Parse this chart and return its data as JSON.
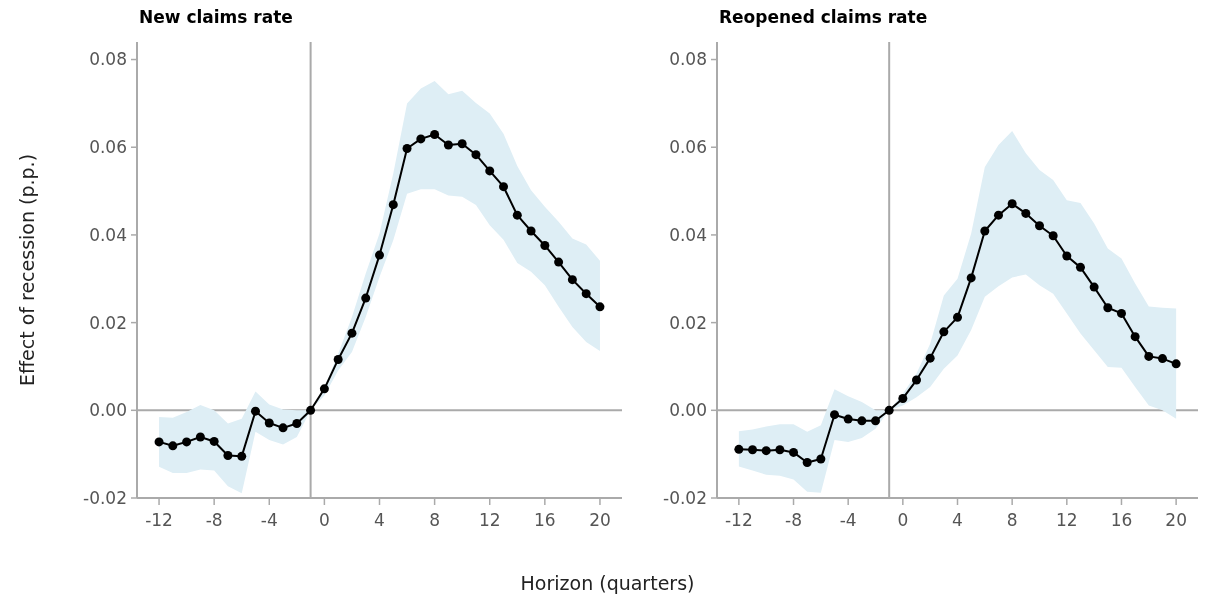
{
  "chart_data": [
    {
      "type": "line",
      "title": "New claims rate",
      "ylabel": "Effect of recession (p.p.)",
      "xlabel": "Horizon (quarters)",
      "x": [
        -12,
        -11,
        -10,
        -9,
        -8,
        -7,
        -6,
        -5,
        -4,
        -3,
        -2,
        -1,
        0,
        1,
        2,
        3,
        4,
        5,
        6,
        7,
        8,
        9,
        10,
        11,
        12,
        13,
        14,
        15,
        16,
        17,
        18,
        19,
        20
      ],
      "series": [
        {
          "color": "#000000",
          "values": [
            -0.0072,
            -0.0081,
            -0.0072,
            -0.0061,
            -0.0071,
            -0.0103,
            -0.0105,
            -0.0002,
            -0.0029,
            -0.004,
            -0.003,
            0,
            0.0049,
            0.0116,
            0.0176,
            0.0256,
            0.0354,
            0.0469,
            0.0597,
            0.0619,
            0.0629,
            0.0605,
            0.0608,
            0.0583,
            0.0546,
            0.051,
            0.0445,
            0.0409,
            0.0376,
            0.0338,
            0.0298,
            0.0266,
            0.0236
          ],
          "lower": [
            -0.0129,
            -0.0143,
            -0.0143,
            -0.0135,
            -0.0137,
            -0.0173,
            -0.0189,
            -0.0049,
            -0.0068,
            -0.0078,
            -0.0061,
            0,
            0.0034,
            0.0091,
            0.0133,
            0.0213,
            0.0304,
            0.0388,
            0.0494,
            0.0504,
            0.0504,
            0.049,
            0.0487,
            0.0468,
            0.0422,
            0.0389,
            0.0336,
            0.0316,
            0.0285,
            0.0236,
            0.019,
            0.0156,
            0.0135
          ],
          "upper": [
            -0.0015,
            -0.0017,
            -0.0004,
            0.0012,
            0,
            -0.003,
            -0.0019,
            0.0043,
            0.0013,
            0.0002,
            0,
            0,
            0.0053,
            0.0129,
            0.0213,
            0.0312,
            0.0403,
            0.054,
            0.07,
            0.0734,
            0.0751,
            0.0721,
            0.0729,
            0.0701,
            0.0677,
            0.0631,
            0.0557,
            0.0502,
            0.0464,
            0.043,
            0.0392,
            0.0378,
            0.0341
          ]
        }
      ],
      "marker": "circle",
      "line_style": "solid",
      "grid": false,
      "xlim": [
        -13.6,
        21.6
      ],
      "xticks": [
        -12,
        -8,
        -4,
        0,
        4,
        8,
        12,
        16,
        20
      ],
      "ylim": [
        -0.02,
        0.084
      ],
      "yticks": [
        {
          "value": -0.02,
          "label": "-0.02"
        },
        {
          "value": 0,
          "label": "0.00"
        },
        {
          "value": 0.02,
          "label": "0.02"
        },
        {
          "value": 0.04,
          "label": "0.04"
        },
        {
          "value": 0.06,
          "label": "0.06"
        },
        {
          "value": 0.08,
          "label": "0.08"
        }
      ],
      "ref_lines": [
        {
          "axis": "x",
          "value": -1,
          "color": "#aaaaaa"
        },
        {
          "axis": "y",
          "value": 0,
          "color": "#aaaaaa"
        }
      ]
    },
    {
      "type": "line",
      "title": "Reopened claims rate",
      "x": [
        -12,
        -11,
        -10,
        -9,
        -8,
        -7,
        -6,
        -5,
        -4,
        -3,
        -2,
        -1,
        0,
        1,
        2,
        3,
        4,
        5,
        6,
        7,
        8,
        9,
        10,
        11,
        12,
        13,
        14,
        15,
        16,
        17,
        18,
        19,
        20
      ],
      "series": [
        {
          "color": "#000000",
          "values": [
            -0.0089,
            -0.009,
            -0.0092,
            -0.009,
            -0.0096,
            -0.0119,
            -0.0111,
            -0.001,
            -0.002,
            -0.0024,
            -0.0024,
            0,
            0.0027,
            0.0069,
            0.0119,
            0.0179,
            0.0212,
            0.0302,
            0.0409,
            0.0445,
            0.0471,
            0.0449,
            0.0421,
            0.0398,
            0.0352,
            0.0326,
            0.0281,
            0.0234,
            0.0221,
            0.0168,
            0.0123,
            0.0118,
            0.0106
          ],
          "lower": [
            -0.0128,
            -0.0137,
            -0.0147,
            -0.0149,
            -0.0158,
            -0.0186,
            -0.0188,
            -0.0068,
            -0.0072,
            -0.0063,
            -0.0042,
            0,
            0.0011,
            0.003,
            0.0053,
            0.0095,
            0.0125,
            0.0183,
            0.0259,
            0.0283,
            0.0303,
            0.031,
            0.0285,
            0.0266,
            0.0221,
            0.0175,
            0.0137,
            0.0099,
            0.0097,
            0.0053,
            0.0011,
            0,
            -0.0019
          ],
          "upper": [
            -0.0048,
            -0.0044,
            -0.0037,
            -0.0032,
            -0.0032,
            -0.0049,
            -0.0034,
            0.0048,
            0.0032,
            0.0019,
            0,
            0,
            0.0038,
            0.0084,
            0.0152,
            0.0262,
            0.03,
            0.0403,
            0.0555,
            0.0605,
            0.0637,
            0.0586,
            0.0548,
            0.0525,
            0.0479,
            0.0473,
            0.0426,
            0.0369,
            0.0346,
            0.0289,
            0.0237,
            0.0234,
            0.0232
          ]
        }
      ],
      "marker": "circle",
      "line_style": "solid",
      "grid": false,
      "xlim": [
        -13.6,
        21.6
      ],
      "xticks": [
        -12,
        -8,
        -4,
        0,
        4,
        8,
        12,
        16,
        20
      ],
      "ylim": [
        -0.02,
        0.084
      ],
      "yticks": [
        {
          "value": -0.02,
          "label": "-0.02"
        },
        {
          "value": 0,
          "label": "0.00"
        },
        {
          "value": 0.02,
          "label": "0.02"
        },
        {
          "value": 0.04,
          "label": "0.04"
        },
        {
          "value": 0.06,
          "label": "0.06"
        },
        {
          "value": 0.08,
          "label": "0.08"
        }
      ],
      "ref_lines": [
        {
          "axis": "x",
          "value": -1,
          "color": "#aaaaaa"
        },
        {
          "axis": "y",
          "value": 0,
          "color": "#aaaaaa"
        }
      ]
    }
  ]
}
